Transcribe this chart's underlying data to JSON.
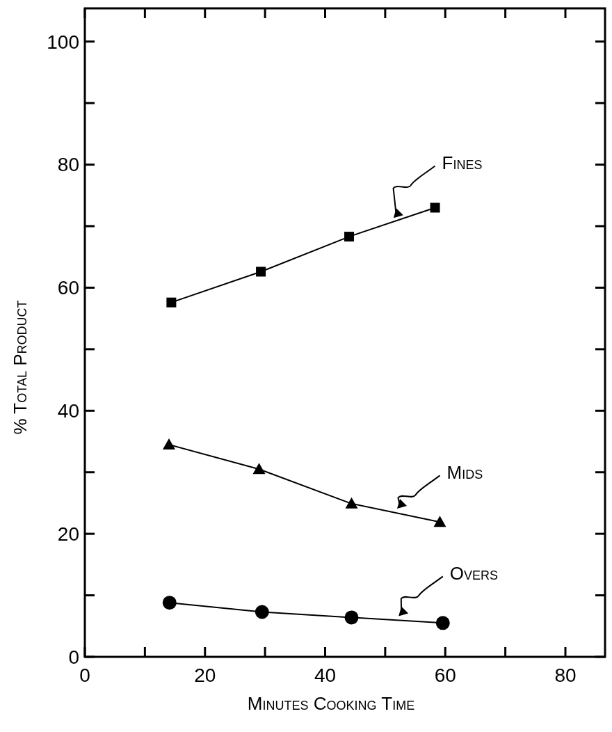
{
  "chart_data": {
    "type": "line",
    "xlabel": "Minutes Cooking Time",
    "ylabel": "% Total Product",
    "xlim": [
      0,
      86.6
    ],
    "ylim": [
      0,
      105.4
    ],
    "xticks": [
      0,
      {
        "value": 10,
        "label": null
      },
      20,
      {
        "value": 30,
        "label": null
      },
      40,
      {
        "value": 50,
        "label": null
      },
      60,
      {
        "value": 70,
        "label": null
      },
      80
    ],
    "yticks": [
      0,
      {
        "value": 10,
        "label": null
      },
      20,
      {
        "value": 30,
        "label": null
      },
      40,
      {
        "value": 50,
        "label": null
      },
      60,
      {
        "value": 70,
        "label": null
      },
      80,
      {
        "value": 90,
        "label": null
      },
      100
    ],
    "grid": false,
    "series": [
      {
        "name": "Fines",
        "color": "#000000",
        "marker": "square",
        "x": [
          14.4,
          29.3,
          44.0,
          58.3
        ],
        "values": [
          57.6,
          62.6,
          68.3,
          73.0
        ]
      },
      {
        "name": "Mids",
        "color": "#000000",
        "marker": "triangle",
        "x": [
          14.0,
          29.0,
          44.4,
          59.1
        ],
        "values": [
          34.5,
          30.5,
          24.9,
          21.9
        ]
      },
      {
        "name": "Overs",
        "color": "#000000",
        "marker": "circle",
        "x": [
          14.1,
          29.5,
          44.4,
          59.6
        ],
        "values": [
          8.8,
          7.3,
          6.4,
          5.5
        ]
      }
    ]
  }
}
